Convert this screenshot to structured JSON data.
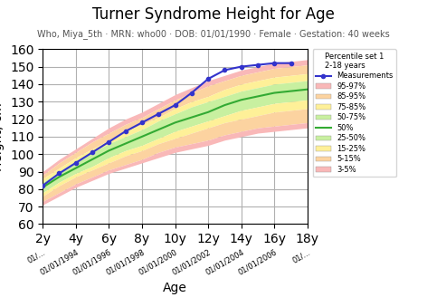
{
  "chart_data": {
    "type": "line",
    "title": "Turner Syndrome Height for Age",
    "subtitle": "Who, Miya_5th · MRN: who00 · DOB: 01/01/1990 · Female · Gestation: 40 weeks",
    "x_label": "Age",
    "y_label": "Height, cm",
    "xlim": [
      2,
      18
    ],
    "ylim": [
      60,
      160
    ],
    "yticks": [
      60,
      70,
      80,
      90,
      100,
      110,
      120,
      130,
      140,
      150,
      160
    ],
    "xticks": [
      {
        "value": 2,
        "label": "2y"
      },
      {
        "value": 4,
        "label": "4y"
      },
      {
        "value": 6,
        "label": "6y"
      },
      {
        "value": 8,
        "label": "8y"
      },
      {
        "value": 10,
        "label": "10y"
      },
      {
        "value": 12,
        "label": "12y"
      },
      {
        "value": 14,
        "label": "14y"
      },
      {
        "value": 16,
        "label": "16y"
      },
      {
        "value": 18,
        "label": "18y"
      }
    ],
    "x_date_ticks": [
      {
        "value": 2,
        "label": "01/..."
      },
      {
        "value": 4,
        "label": "01/01/1994"
      },
      {
        "value": 6,
        "label": "01/01/1996"
      },
      {
        "value": 8,
        "label": "01/01/1998"
      },
      {
        "value": 10,
        "label": "01/01/2000"
      },
      {
        "value": 12,
        "label": "01/01/2002"
      },
      {
        "value": 14,
        "label": "01/01/2004"
      },
      {
        "value": 16,
        "label": "01/01/2006"
      },
      {
        "value": 18,
        "label": "01/..."
      }
    ],
    "grid": true,
    "legend": "right",
    "legend_title": [
      "Percentile set 1",
      "2-18 years"
    ],
    "x": [
      2,
      3,
      4,
      5,
      6,
      7,
      8,
      9,
      10,
      11,
      12,
      13,
      14,
      15,
      16,
      17,
      18
    ],
    "series": [
      {
        "name": "Measurements",
        "type": "line",
        "color": "#3333cc",
        "marker": "o",
        "line_style": "solid",
        "x": [
          2,
          3,
          4,
          5,
          6,
          7,
          8,
          9,
          10,
          11,
          12,
          13,
          14,
          15,
          16,
          17
        ],
        "values": [
          82,
          89,
          95,
          101,
          107,
          113,
          118,
          123,
          128,
          135,
          143,
          148,
          150,
          151,
          152,
          152
        ]
      },
      {
        "name": "95-97%",
        "type": "band",
        "color": "#f9b8b8",
        "lower": [
          88,
          95,
          101,
          107,
          112,
          117,
          121,
          126,
          131,
          135,
          139,
          142,
          145,
          147,
          149,
          150,
          151
        ],
        "upper": [
          90,
          97,
          103,
          109,
          115,
          120,
          124,
          129,
          134,
          138,
          142,
          145,
          148,
          150,
          152,
          153,
          154
        ]
      },
      {
        "name": "85-95%",
        "type": "band",
        "color": "#fcd3a0",
        "lower": [
          86,
          92,
          98,
          103,
          108,
          113,
          117,
          121,
          126,
          130,
          133,
          137,
          140,
          142,
          144,
          145,
          146
        ],
        "upper": [
          88,
          95,
          101,
          107,
          112,
          117,
          121,
          126,
          131,
          135,
          139,
          142,
          145,
          147,
          149,
          150,
          151
        ]
      },
      {
        "name": "75-85%",
        "type": "band",
        "color": "#fef098",
        "lower": [
          84,
          90,
          96,
          101,
          106,
          110,
          114,
          119,
          123,
          127,
          130,
          133,
          136,
          138,
          140,
          141,
          142
        ],
        "upper": [
          86,
          92,
          98,
          103,
          108,
          113,
          117,
          121,
          126,
          130,
          133,
          137,
          140,
          142,
          144,
          145,
          146
        ]
      },
      {
        "name": "50-75%",
        "type": "band",
        "color": "#c8f0a0",
        "lower": [
          81,
          87,
          92,
          97,
          102,
          106,
          110,
          114,
          118,
          121,
          124,
          128,
          131,
          133,
          135,
          136,
          137
        ],
        "upper": [
          84,
          90,
          96,
          101,
          106,
          110,
          114,
          119,
          123,
          127,
          130,
          133,
          136,
          138,
          140,
          141,
          142
        ]
      },
      {
        "name": "50%",
        "type": "line",
        "color": "#33aa33",
        "line_style": "solid",
        "values": [
          81,
          87,
          92,
          97,
          102,
          106,
          110,
          114,
          118,
          121,
          124,
          128,
          131,
          133,
          135,
          136,
          137
        ]
      },
      {
        "name": "25-50%",
        "type": "band",
        "color": "#c8f0a0",
        "lower": [
          78,
          84,
          89,
          93,
          98,
          102,
          105,
          109,
          113,
          116,
          119,
          122,
          125,
          127,
          129,
          130,
          131
        ],
        "upper": [
          81,
          87,
          92,
          97,
          102,
          106,
          110,
          114,
          118,
          121,
          124,
          128,
          131,
          133,
          135,
          136,
          137
        ]
      },
      {
        "name": "15-25%",
        "type": "band",
        "color": "#fef098",
        "lower": [
          76,
          82,
          87,
          91,
          95,
          99,
          102,
          106,
          109,
          112,
          115,
          118,
          120,
          122,
          124,
          125,
          126
        ],
        "upper": [
          78,
          84,
          89,
          93,
          98,
          102,
          105,
          109,
          113,
          116,
          119,
          122,
          125,
          127,
          129,
          130,
          131
        ]
      },
      {
        "name": "5-15%",
        "type": "band",
        "color": "#fcd3a0",
        "lower": [
          73,
          78,
          83,
          87,
          91,
          94,
          97,
          101,
          104,
          106,
          108,
          111,
          113,
          115,
          116,
          117,
          118
        ],
        "upper": [
          76,
          82,
          87,
          91,
          95,
          99,
          102,
          106,
          109,
          112,
          115,
          118,
          120,
          122,
          124,
          125,
          126
        ]
      },
      {
        "name": "3-5%",
        "type": "band",
        "color": "#f9b8b8",
        "lower": [
          71,
          76,
          81,
          85,
          89,
          92,
          95,
          98,
          101,
          103,
          105,
          108,
          110,
          112,
          113,
          114,
          115
        ],
        "upper": [
          73,
          78,
          83,
          87,
          91,
          94,
          97,
          101,
          104,
          106,
          108,
          111,
          113,
          115,
          116,
          117,
          118
        ]
      }
    ]
  }
}
